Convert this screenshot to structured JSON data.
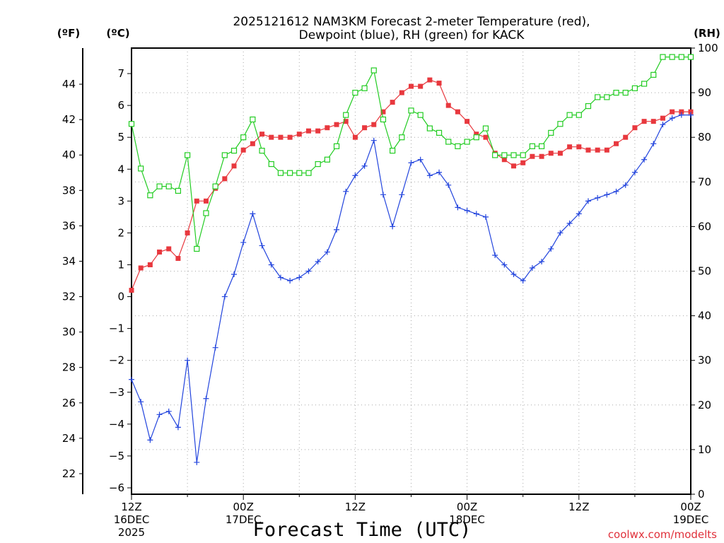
{
  "chart_data": {
    "type": "line",
    "title_line1": "2025121612 NAM3KM Forecast 2-meter Temperature (red),",
    "title_line2": "Dewpoint (blue), RH (green) for KACK",
    "xlabel": "Forecast Time (UTC)",
    "credit": "coolwx.com/modelts",
    "unit_f": "(ºF)",
    "unit_c": "(ºC)",
    "unit_rh": "(RH)",
    "x_hours_range": [
      0,
      60
    ],
    "c_range": [
      -6.2,
      7.8
    ],
    "rh_range": [
      0,
      100
    ],
    "f_range": [
      20.84,
      46.04
    ],
    "c_ticks": [
      -6,
      -5,
      -4,
      -3,
      -2,
      -1,
      0,
      1,
      2,
      3,
      4,
      5,
      6,
      7
    ],
    "f_ticks": [
      22,
      24,
      26,
      28,
      30,
      32,
      34,
      36,
      38,
      40,
      42,
      44
    ],
    "rh_ticks": [
      0,
      10,
      20,
      30,
      40,
      50,
      60,
      70,
      80,
      90,
      100
    ],
    "x_ticks": [
      {
        "hour": 0,
        "lines": [
          "12Z",
          "16DEC",
          "2025"
        ]
      },
      {
        "hour": 12,
        "lines": [
          "00Z",
          "17DEC"
        ]
      },
      {
        "hour": 24,
        "lines": [
          "12Z"
        ]
      },
      {
        "hour": 36,
        "lines": [
          "00Z",
          "18DEC"
        ]
      },
      {
        "hour": 48,
        "lines": [
          "12Z"
        ]
      },
      {
        "hour": 60,
        "lines": [
          "00Z",
          "19DEC"
        ]
      }
    ],
    "series": [
      {
        "name": "Temperature",
        "units": "C",
        "color": "#e8383e",
        "marker": "filled-square",
        "values": [
          0.2,
          0.9,
          1.0,
          1.4,
          1.5,
          1.2,
          2.0,
          3.0,
          3.0,
          3.4,
          3.7,
          4.1,
          4.6,
          4.8,
          5.1,
          5.0,
          5.0,
          5.0,
          5.1,
          5.2,
          5.2,
          5.3,
          5.4,
          5.5,
          5.0,
          5.3,
          5.4,
          5.8,
          6.1,
          6.4,
          6.6,
          6.6,
          6.8,
          6.7,
          6.0,
          5.8,
          5.5,
          5.1,
          5.0,
          4.5,
          4.3,
          4.1,
          4.2,
          4.4,
          4.4,
          4.5,
          4.5,
          4.7,
          4.7,
          4.6,
          4.6,
          4.6,
          4.8,
          5.0,
          5.3,
          5.5,
          5.5,
          5.6,
          5.8,
          5.8,
          5.8
        ]
      },
      {
        "name": "Dewpoint",
        "units": "C",
        "color": "#2244dd",
        "marker": "plus",
        "values": [
          -2.6,
          -3.3,
          -4.5,
          -3.7,
          -3.6,
          -4.1,
          -2.0,
          -5.2,
          -3.2,
          -1.6,
          0.0,
          0.7,
          1.7,
          2.6,
          1.6,
          1.0,
          0.6,
          0.5,
          0.6,
          0.8,
          1.1,
          1.4,
          2.1,
          3.3,
          3.8,
          4.1,
          4.9,
          3.2,
          2.2,
          3.2,
          4.2,
          4.3,
          3.8,
          3.9,
          3.5,
          2.8,
          2.7,
          2.6,
          2.5,
          1.3,
          1.0,
          0.7,
          0.5,
          0.9,
          1.1,
          1.5,
          2.0,
          2.3,
          2.6,
          3.0,
          3.1,
          3.2,
          3.3,
          3.5,
          3.9,
          4.3,
          4.8,
          5.4,
          5.6,
          5.7,
          5.7
        ]
      },
      {
        "name": "RH",
        "units": "%",
        "color": "#22cc22",
        "marker": "open-square",
        "values": [
          83,
          73,
          67,
          69,
          69,
          68,
          76,
          55,
          63,
          69,
          76,
          77,
          80,
          84,
          77,
          74,
          72,
          72,
          72,
          72,
          74,
          75,
          78,
          85,
          90,
          91,
          95,
          84,
          77,
          80,
          86,
          85,
          82,
          81,
          79,
          78,
          79,
          80,
          82,
          76,
          76,
          76,
          76,
          78,
          78,
          81,
          83,
          85,
          85,
          87,
          89,
          89,
          90,
          90,
          91,
          92,
          94,
          98,
          98,
          98,
          98
        ]
      }
    ]
  }
}
